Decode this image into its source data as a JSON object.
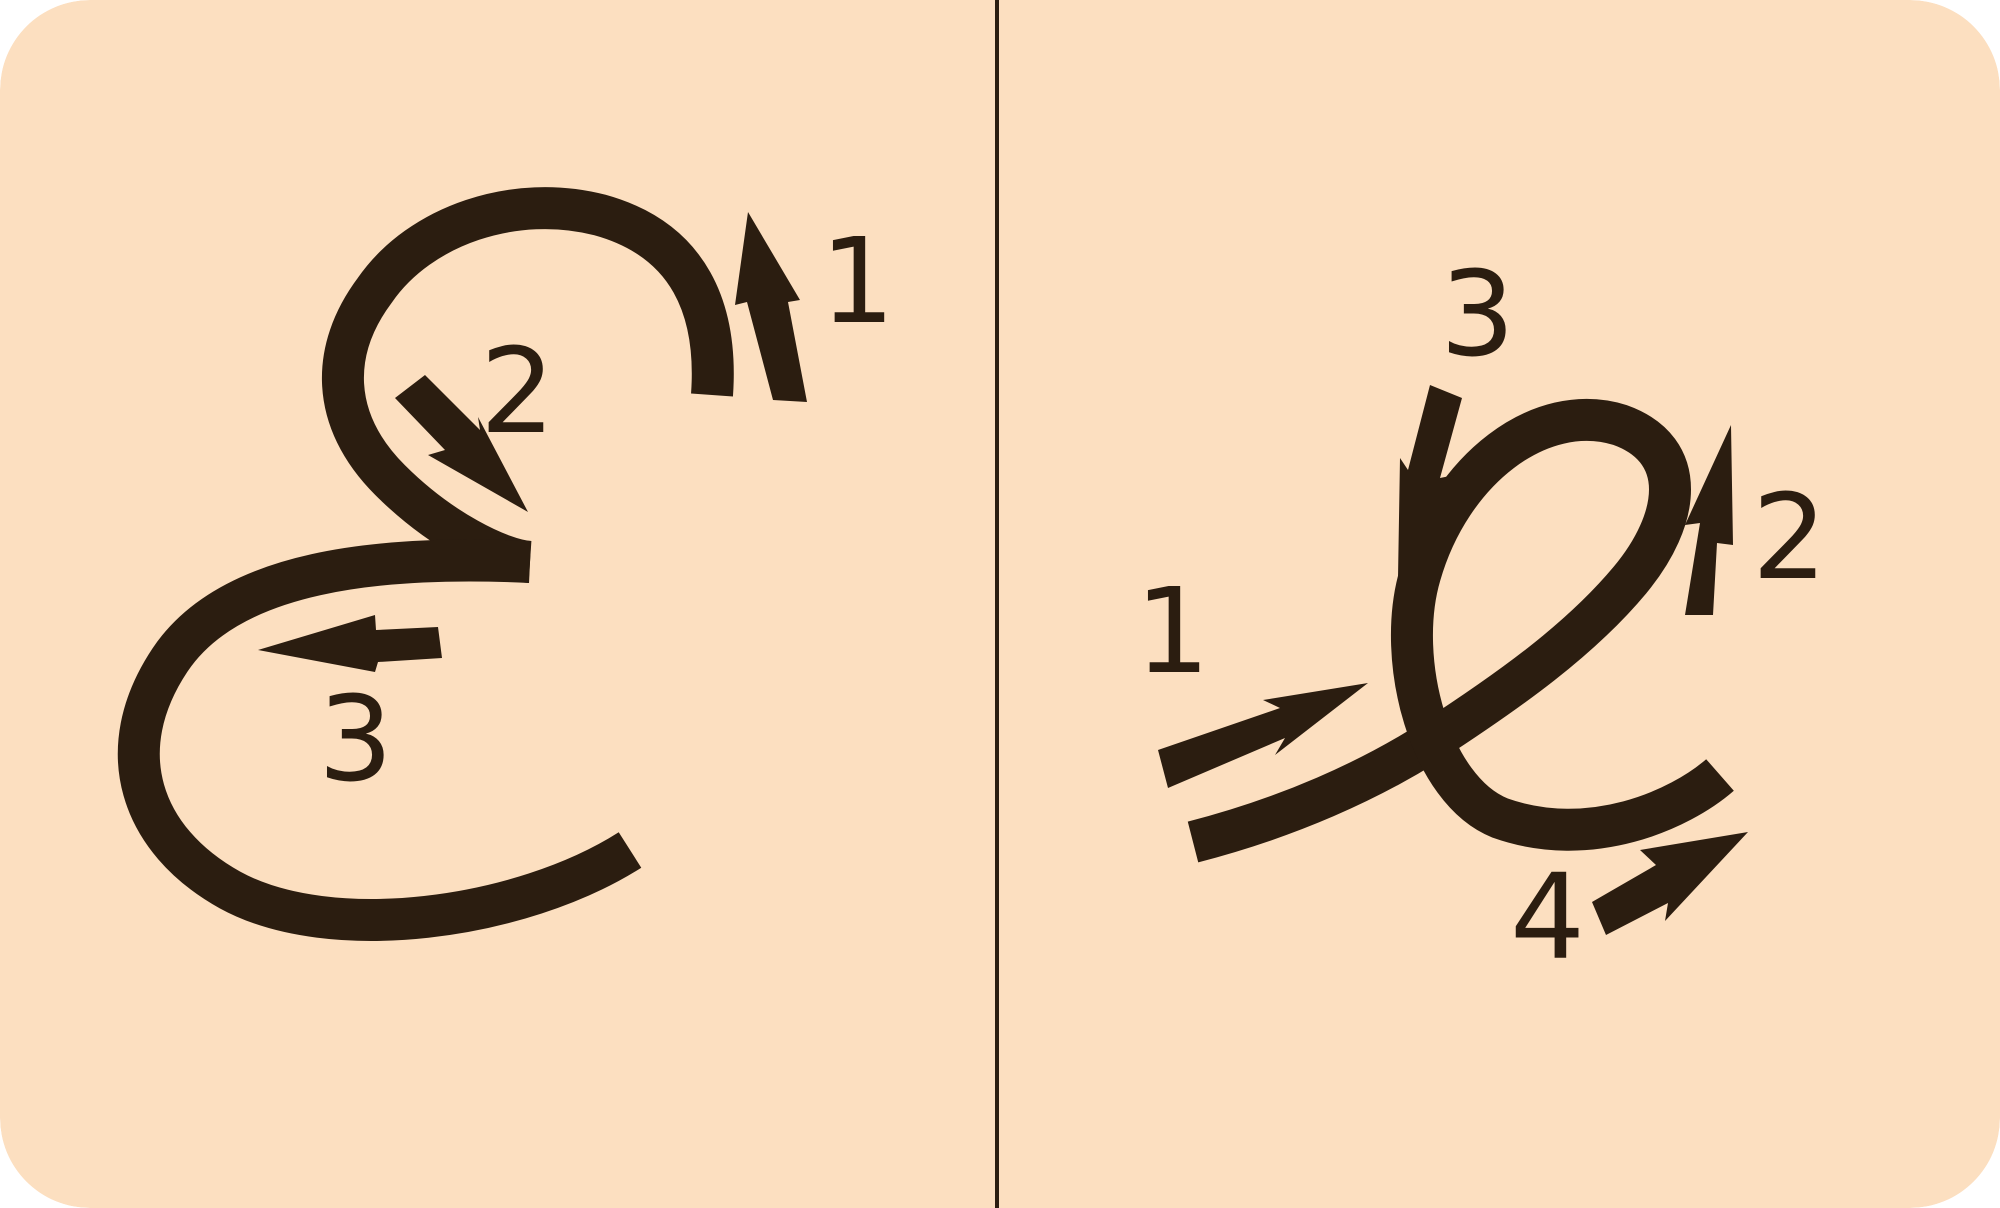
{
  "colors": {
    "background": "#fcdfc0",
    "ink": "#2b1d10",
    "divider": "#2b1d10"
  },
  "left_letter": {
    "step_labels": [
      "1",
      "2",
      "3"
    ]
  },
  "right_letter": {
    "step_labels": [
      "1",
      "2",
      "3",
      "4"
    ]
  }
}
